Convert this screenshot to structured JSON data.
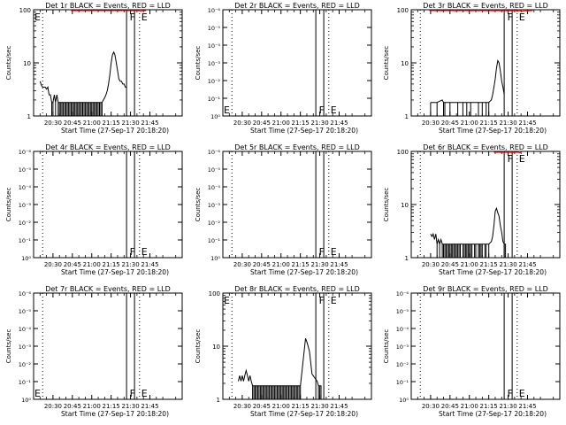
{
  "x_axis_title": "Start Time (27-Sep-17 20:18:20)",
  "y_axis_title": "Counts/sec",
  "x_ticks": [
    "20:30",
    "20:45",
    "21:00",
    "21:15",
    "21:30",
    "21:45"
  ],
  "marker_labels": {
    "flare": "F",
    "eclipse": "E"
  },
  "colors": {
    "events": "#000000",
    "lld": "#ff0000"
  },
  "chart_data": [
    {
      "type": "line",
      "title": "Det 1r BLACK = Events, RED = LLD",
      "scale": "log",
      "y_tick_labels": [
        "1",
        "10",
        "100"
      ],
      "ylim": [
        1,
        100
      ],
      "x_range_min": [
        0,
        115
      ],
      "events": [
        [
          5,
          4.5
        ],
        [
          6,
          3.8
        ],
        [
          7,
          3.5
        ],
        [
          8,
          3.5
        ],
        [
          9,
          3.5
        ],
        [
          10,
          3.2
        ],
        [
          11,
          3.5
        ],
        [
          12,
          2.5
        ],
        [
          13,
          2.5
        ],
        [
          14,
          1.8
        ],
        [
          15,
          1.8
        ],
        [
          16,
          2.5
        ],
        [
          17,
          1.8
        ],
        [
          18,
          2.5
        ],
        [
          19,
          1.8
        ],
        [
          20,
          1.8
        ],
        [
          21,
          1.8
        ],
        [
          22,
          1.8
        ],
        [
          23,
          1.8
        ],
        [
          24,
          1.8
        ],
        [
          25,
          1.8
        ],
        [
          26,
          1.8
        ],
        [
          27,
          1.8
        ],
        [
          28,
          1.8
        ],
        [
          29,
          1.8
        ],
        [
          30,
          1.8
        ],
        [
          31,
          1.8
        ],
        [
          32,
          1.8
        ],
        [
          33,
          1.8
        ],
        [
          34,
          1.8
        ],
        [
          35,
          1.8
        ],
        [
          36,
          1.8
        ],
        [
          37,
          1.8
        ],
        [
          38,
          1.8
        ],
        [
          39,
          1.8
        ],
        [
          40,
          1.8
        ],
        [
          41,
          1.8
        ],
        [
          42,
          1.8
        ],
        [
          43,
          1.8
        ],
        [
          44,
          1.8
        ],
        [
          45,
          1.8
        ],
        [
          46,
          1.8
        ],
        [
          47,
          1.8
        ],
        [
          48,
          1.8
        ],
        [
          49,
          1.8
        ],
        [
          50,
          1.8
        ],
        [
          51,
          1.8
        ],
        [
          52,
          1.8
        ],
        [
          53,
          1.8
        ],
        [
          54,
          2.0
        ],
        [
          55,
          2.2
        ],
        [
          56,
          2.5
        ],
        [
          57,
          3.0
        ],
        [
          58,
          4.0
        ],
        [
          59,
          6.0
        ],
        [
          60,
          10.0
        ],
        [
          61,
          14.0
        ],
        [
          62,
          16.0
        ],
        [
          63,
          14.0
        ],
        [
          64,
          10.0
        ],
        [
          65,
          7.0
        ],
        [
          66,
          5.0
        ],
        [
          67,
          4.5
        ],
        [
          68,
          4.5
        ],
        [
          69,
          4.0
        ],
        [
          70,
          4.0
        ],
        [
          71,
          3.5
        ],
        [
          72,
          3.5
        ]
      ],
      "lld": [
        [
          29,
          98
        ],
        [
          30,
          96
        ],
        [
          31,
          100
        ],
        [
          32,
          97
        ],
        [
          33,
          95
        ],
        [
          34,
          99
        ],
        [
          35,
          98
        ],
        [
          36,
          96
        ],
        [
          37,
          100
        ],
        [
          38,
          97
        ],
        [
          39,
          95
        ],
        [
          40,
          98
        ],
        [
          41,
          97
        ],
        [
          42,
          99
        ],
        [
          43,
          96
        ],
        [
          44,
          97
        ],
        [
          80,
          100
        ],
        [
          81,
          96
        ],
        [
          82,
          97
        ],
        [
          83,
          94
        ],
        [
          84,
          98
        ],
        [
          85,
          95
        ],
        [
          86,
          100
        ],
        [
          87,
          97
        ]
      ],
      "flare_min": 74,
      "eclipse_min": 82,
      "dotted_min": [
        7,
        82
      ],
      "e_left": true
    },
    {
      "type": "line",
      "title": "Det 2r BLACK = Events, RED = LLD",
      "scale": "linear_sci",
      "y_tick_labels": [
        "10⁰",
        "10⁻¹",
        "10⁻²",
        "10⁻³",
        "10⁻⁴",
        "10⁻⁵",
        "10⁻⁶"
      ],
      "x_range_min": [
        0,
        115
      ],
      "events": [],
      "lld": [],
      "flare_min": 74,
      "eclipse_min": 82,
      "dotted_min": [
        7,
        82
      ],
      "e_left": true
    },
    {
      "type": "line",
      "title": "Det 3r BLACK = Events, RED = LLD",
      "scale": "log",
      "y_tick_labels": [
        "1",
        "10",
        "100"
      ],
      "ylim": [
        1,
        100
      ],
      "x_range_min": [
        0,
        115
      ],
      "events": [
        [
          15,
          1.8
        ],
        [
          20,
          1.8
        ],
        [
          24,
          2.0
        ],
        [
          25,
          1.8
        ],
        [
          26,
          1.8
        ],
        [
          30,
          1.8
        ],
        [
          36,
          1.8
        ],
        [
          40,
          1.8
        ],
        [
          43,
          1.8
        ],
        [
          46,
          1.8
        ],
        [
          52,
          1.8
        ],
        [
          55,
          1.8
        ],
        [
          58,
          1.8
        ],
        [
          60,
          1.8
        ],
        [
          62,
          2.0
        ],
        [
          63,
          2.5
        ],
        [
          64,
          3.5
        ],
        [
          65,
          5.0
        ],
        [
          66,
          8.0
        ],
        [
          67,
          11.0
        ],
        [
          68,
          10.0
        ],
        [
          69,
          7.0
        ],
        [
          70,
          4.5
        ],
        [
          71,
          3.5
        ],
        [
          72,
          2.5
        ]
      ],
      "lld": [
        [
          14,
          100
        ],
        [
          15,
          96
        ],
        [
          16,
          98
        ],
        [
          17,
          97
        ],
        [
          18,
          100
        ],
        [
          19,
          95
        ],
        [
          20,
          98
        ],
        [
          21,
          97
        ],
        [
          22,
          100
        ],
        [
          23,
          96
        ],
        [
          24,
          99
        ],
        [
          25,
          95
        ],
        [
          26,
          98
        ],
        [
          27,
          97
        ],
        [
          28,
          100
        ],
        [
          29,
          96
        ],
        [
          30,
          98
        ],
        [
          31,
          97
        ],
        [
          32,
          99
        ],
        [
          33,
          96
        ],
        [
          34,
          95
        ],
        [
          35,
          98
        ],
        [
          36,
          96
        ],
        [
          37,
          97
        ],
        [
          38,
          100
        ],
        [
          39,
          99
        ],
        [
          40,
          97
        ],
        [
          41,
          95
        ],
        [
          42,
          98
        ],
        [
          43,
          100
        ],
        [
          44,
          96
        ],
        [
          45,
          97
        ],
        [
          46,
          95
        ],
        [
          47,
          99
        ],
        [
          48,
          96
        ],
        [
          49,
          100
        ],
        [
          50,
          97
        ],
        [
          51,
          98
        ],
        [
          52,
          95
        ],
        [
          53,
          99
        ],
        [
          54,
          97
        ],
        [
          55,
          100
        ],
        [
          56,
          96
        ],
        [
          57,
          98
        ],
        [
          58,
          97
        ],
        [
          59,
          95
        ],
        [
          60,
          99
        ],
        [
          61,
          97
        ],
        [
          62,
          96
        ],
        [
          63,
          98
        ],
        [
          64,
          95
        ],
        [
          65,
          96
        ],
        [
          66,
          97
        ],
        [
          67,
          100
        ],
        [
          68,
          96
        ],
        [
          69,
          95
        ],
        [
          70,
          99
        ],
        [
          80,
          96
        ],
        [
          81,
          99
        ],
        [
          82,
          94
        ],
        [
          83,
          96
        ],
        [
          84,
          95
        ],
        [
          85,
          98
        ],
        [
          86,
          93
        ],
        [
          87,
          96
        ],
        [
          88,
          95
        ],
        [
          89,
          97
        ],
        [
          90,
          94
        ],
        [
          91,
          99
        ],
        [
          92,
          96
        ],
        [
          93,
          98
        ],
        [
          94,
          97
        ]
      ],
      "flare_min": 74,
      "eclipse_min": 82,
      "dotted_min": [
        7,
        82
      ],
      "e_left": false
    },
    {
      "type": "line",
      "title": "Det 4r BLACK = Events, RED = LLD",
      "scale": "linear_sci",
      "y_tick_labels": [
        "10⁰",
        "10⁻¹",
        "10⁻²",
        "10⁻³",
        "10⁻⁴",
        "10⁻⁵",
        "10⁻⁶"
      ],
      "x_range_min": [
        0,
        115
      ],
      "events": [],
      "lld": [],
      "flare_min": 74,
      "eclipse_min": 82,
      "dotted_min": [
        7,
        82
      ],
      "e_left": false
    },
    {
      "type": "line",
      "title": "Det 5r BLACK = Events, RED = LLD",
      "scale": "linear_sci",
      "y_tick_labels": [
        "10⁰",
        "10⁻¹",
        "10⁻²",
        "10⁻³",
        "10⁻⁴",
        "10⁻⁵",
        "10⁻⁶"
      ],
      "x_range_min": [
        0,
        115
      ],
      "events": [],
      "lld": [],
      "flare_min": 74,
      "eclipse_min": 82,
      "dotted_min": [
        7,
        82
      ],
      "e_left": false
    },
    {
      "type": "line",
      "title": "Det 6r BLACK = Events, RED = LLD",
      "scale": "log",
      "y_tick_labels": [
        "1",
        "10",
        "100"
      ],
      "ylim": [
        1,
        100
      ],
      "x_range_min": [
        0,
        115
      ],
      "events": [
        [
          15,
          2.8
        ],
        [
          16,
          2.5
        ],
        [
          17,
          2.8
        ],
        [
          18,
          2.2
        ],
        [
          19,
          2.8
        ],
        [
          20,
          1.8
        ],
        [
          21,
          2.2
        ],
        [
          22,
          1.8
        ],
        [
          23,
          2.2
        ],
        [
          24,
          1.8
        ],
        [
          25,
          1.8
        ],
        [
          26,
          1.8
        ],
        [
          27,
          1.8
        ],
        [
          28,
          1.8
        ],
        [
          29,
          1.8
        ],
        [
          30,
          1.8
        ],
        [
          31,
          1.8
        ],
        [
          32,
          1.8
        ],
        [
          33,
          1.8
        ],
        [
          34,
          1.8
        ],
        [
          35,
          1.8
        ],
        [
          36,
          1.8
        ],
        [
          37,
          1.8
        ],
        [
          38,
          1.8
        ],
        [
          40,
          1.8
        ],
        [
          41,
          1.8
        ],
        [
          42,
          1.8
        ],
        [
          43,
          1.8
        ],
        [
          44,
          1.8
        ],
        [
          45,
          1.8
        ],
        [
          46,
          1.8
        ],
        [
          47,
          1.8
        ],
        [
          49,
          1.8
        ],
        [
          50,
          1.8
        ],
        [
          52,
          1.8
        ],
        [
          53,
          1.8
        ],
        [
          54,
          1.8
        ],
        [
          55,
          1.8
        ],
        [
          57,
          1.8
        ],
        [
          58,
          1.8
        ],
        [
          60,
          1.8
        ],
        [
          62,
          2.0
        ],
        [
          63,
          2.5
        ],
        [
          64,
          4.0
        ],
        [
          65,
          7.5
        ],
        [
          66,
          8.5
        ],
        [
          67,
          7.0
        ],
        [
          68,
          6.0
        ],
        [
          69,
          4.0
        ],
        [
          70,
          3.0
        ],
        [
          71,
          2.0
        ],
        [
          72,
          1.8
        ],
        [
          73,
          1.8
        ]
      ],
      "lld": [
        [
          64,
          98
        ],
        [
          65,
          100
        ],
        [
          66,
          99
        ],
        [
          80,
          95
        ],
        [
          81,
          97
        ],
        [
          82,
          99
        ],
        [
          83,
          96
        ],
        [
          84,
          94
        ],
        [
          85,
          98
        ]
      ],
      "flare_min": 74,
      "eclipse_min": 82,
      "dotted_min": [
        7,
        82
      ],
      "e_left": false
    },
    {
      "type": "line",
      "title": "Det 7r BLACK = Events, RED = LLD",
      "scale": "linear_sci",
      "y_tick_labels": [
        "10⁰",
        "10⁻¹",
        "10⁻²",
        "10⁻³",
        "10⁻⁴",
        "10⁻⁵",
        "10⁻⁶"
      ],
      "x_range_min": [
        0,
        115
      ],
      "events": [],
      "lld": [],
      "flare_min": 74,
      "eclipse_min": 82,
      "dotted_min": [
        7,
        82
      ],
      "e_left": true
    },
    {
      "type": "line",
      "title": "Det 8r BLACK = Events, RED = LLD",
      "scale": "log",
      "y_tick_labels": [
        "1",
        "10",
        "100"
      ],
      "ylim": [
        1,
        100
      ],
      "x_range_min": [
        0,
        115
      ],
      "events": [
        [
          12,
          2.2
        ],
        [
          13,
          2.8
        ],
        [
          14,
          2.2
        ],
        [
          15,
          2.8
        ],
        [
          16,
          2.2
        ],
        [
          17,
          2.8
        ],
        [
          18,
          3.5
        ],
        [
          19,
          2.8
        ],
        [
          20,
          2.2
        ],
        [
          21,
          2.8
        ],
        [
          22,
          2.2
        ],
        [
          23,
          1.8
        ],
        [
          24,
          1.8
        ],
        [
          25,
          1.8
        ],
        [
          26,
          1.8
        ],
        [
          27,
          1.8
        ],
        [
          28,
          1.8
        ],
        [
          29,
          1.8
        ],
        [
          30,
          1.8
        ],
        [
          31,
          1.8
        ],
        [
          32,
          1.8
        ],
        [
          33,
          1.8
        ],
        [
          34,
          1.8
        ],
        [
          35,
          1.8
        ],
        [
          36,
          1.8
        ],
        [
          37,
          1.8
        ],
        [
          38,
          1.8
        ],
        [
          39,
          1.8
        ],
        [
          40,
          1.8
        ],
        [
          41,
          1.8
        ],
        [
          42,
          1.8
        ],
        [
          43,
          1.8
        ],
        [
          44,
          1.8
        ],
        [
          45,
          1.8
        ],
        [
          46,
          1.8
        ],
        [
          47,
          1.8
        ],
        [
          48,
          1.8
        ],
        [
          49,
          1.8
        ],
        [
          50,
          1.8
        ],
        [
          51,
          1.8
        ],
        [
          52,
          1.8
        ],
        [
          53,
          1.8
        ],
        [
          54,
          1.8
        ],
        [
          55,
          1.8
        ],
        [
          56,
          1.8
        ],
        [
          57,
          1.8
        ],
        [
          58,
          1.8
        ],
        [
          59,
          1.8
        ],
        [
          60,
          1.8
        ],
        [
          64,
          14
        ],
        [
          65,
          12
        ],
        [
          66,
          10
        ],
        [
          67,
          8
        ],
        [
          68,
          5
        ],
        [
          69,
          3
        ],
        [
          73,
          2.2
        ],
        [
          74,
          1.8
        ],
        [
          75,
          1.8
        ],
        [
          76,
          1.8
        ]
      ],
      "lld": [],
      "flare_min": 74,
      "eclipse_min": 82,
      "dotted_min": [
        7,
        82
      ],
      "e_left": true
    },
    {
      "type": "line",
      "title": "Det 9r BLACK = Events, RED = LLD",
      "scale": "linear_sci",
      "y_tick_labels": [
        "10⁰",
        "10⁻¹",
        "10⁻²",
        "10⁻³",
        "10⁻⁴",
        "10⁻⁵",
        "10⁻⁶"
      ],
      "x_range_min": [
        0,
        115
      ],
      "events": [],
      "lld": [],
      "flare_min": 74,
      "eclipse_min": 82,
      "dotted_min": [
        7,
        82
      ],
      "e_left": false
    }
  ]
}
